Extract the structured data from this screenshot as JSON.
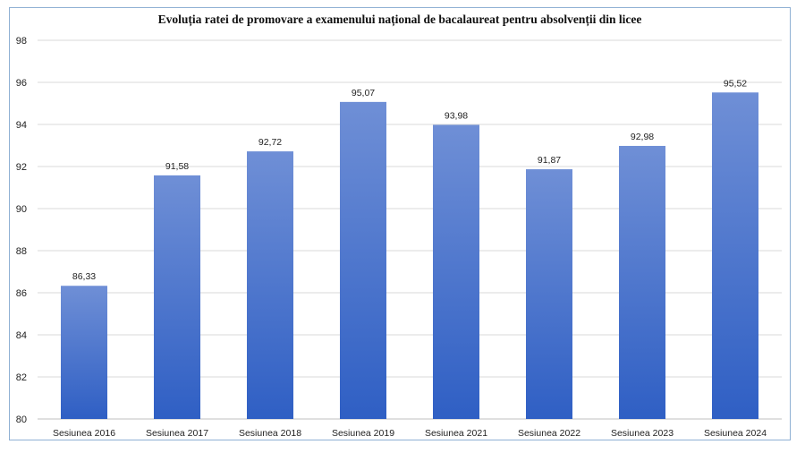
{
  "chart_data": {
    "type": "bar",
    "title": "Evoluția ratei de promovare a examenului național de bacalaureat pentru absolvenții din licee",
    "categories": [
      "Sesiunea 2016",
      "Sesiunea 2017",
      "Sesiunea 2018",
      "Sesiunea 2019",
      "Sesiunea 2021",
      "Sesiunea 2022",
      "Sesiunea 2023",
      "Sesiunea 2024"
    ],
    "values": [
      86.33,
      91.58,
      92.72,
      95.07,
      93.98,
      91.87,
      92.98,
      95.52
    ],
    "data_labels": [
      "86,33",
      "91,58",
      "92,72",
      "95,07",
      "93,98",
      "91,87",
      "92,98",
      "95,52"
    ],
    "ylim": [
      80,
      98
    ],
    "yticks": [
      "80",
      "82",
      "84",
      "86",
      "88",
      "90",
      "92",
      "94",
      "96",
      "98"
    ],
    "grid": true,
    "legend": "none",
    "colors": {
      "bar_top": "#6f8fd6",
      "bar_bottom": "#2f5fc4",
      "grid": "#d9d9d9",
      "frame": "#8fb0d4"
    }
  }
}
